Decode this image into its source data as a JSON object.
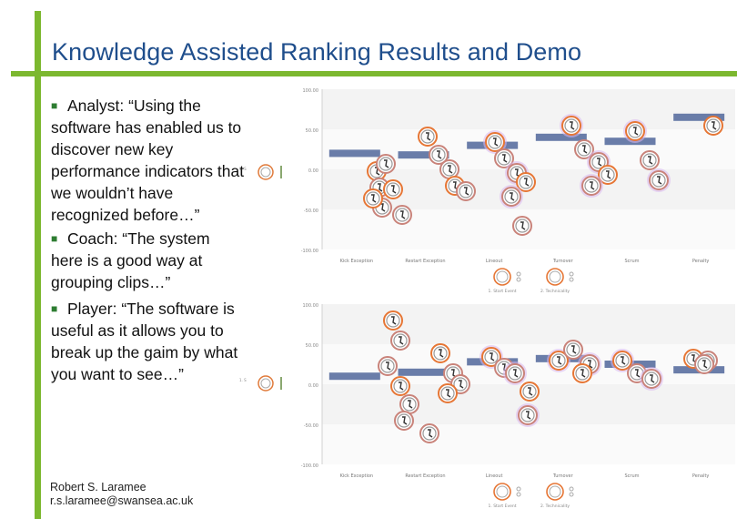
{
  "slide": {
    "title": "Knowledge Assisted Ranking Results and Demo",
    "bullets": [
      {
        "text": "Analyst: “Using the software has enabled us to discover new key performance indicators that we wouldn’t have recognized before…”"
      },
      {
        "text": "Coach: “The system here is a good way at grouping clips…”"
      },
      {
        "text": "Player: “The software is useful as it allows you to break up the gaim by what you want to see…”"
      }
    ],
    "footer": {
      "name": "Robert S. Laramee",
      "email": "r.s.laramee@swansea.ac.uk"
    }
  },
  "chart_data": [
    {
      "type": "scatter",
      "categories": [
        "Kick Exception",
        "Restart Exception",
        "Lineout",
        "Turnover",
        "Scrum",
        "Penalty"
      ],
      "yticks": [
        "100.00",
        "50.00",
        "0.00",
        "-50.00",
        "-100.00"
      ],
      "ylim": [
        -100,
        100
      ],
      "bar_levels": [
        20,
        18,
        30,
        40,
        35,
        65
      ],
      "legend": [
        "1. Start Event",
        "2. Technicality"
      ]
    },
    {
      "type": "scatter",
      "categories": [
        "Kick Exception",
        "Restart Exception",
        "Lineout",
        "Turnover",
        "Scrum",
        "Penalty"
      ],
      "yticks": [
        "100.00",
        "50.00",
        "0.00",
        "-50.00",
        "-100.00"
      ],
      "ylim": [
        -100,
        100
      ],
      "bar_levels": [
        10,
        15,
        28,
        32,
        25,
        18
      ],
      "legend": [
        "1. Start Event",
        "2. Technicality"
      ]
    }
  ]
}
